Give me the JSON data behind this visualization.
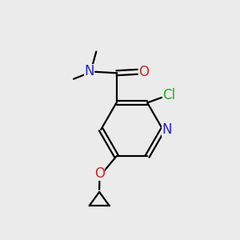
{
  "background_color": "#ebebeb",
  "atom_colors": {
    "C": "#000000",
    "N": "#2222cc",
    "O": "#cc2222",
    "Cl": "#22aa22"
  },
  "bond_color": "#000000",
  "bond_width": 1.6,
  "font_size_atoms": 12,
  "xlim": [
    0,
    10
  ],
  "ylim": [
    0,
    10
  ]
}
